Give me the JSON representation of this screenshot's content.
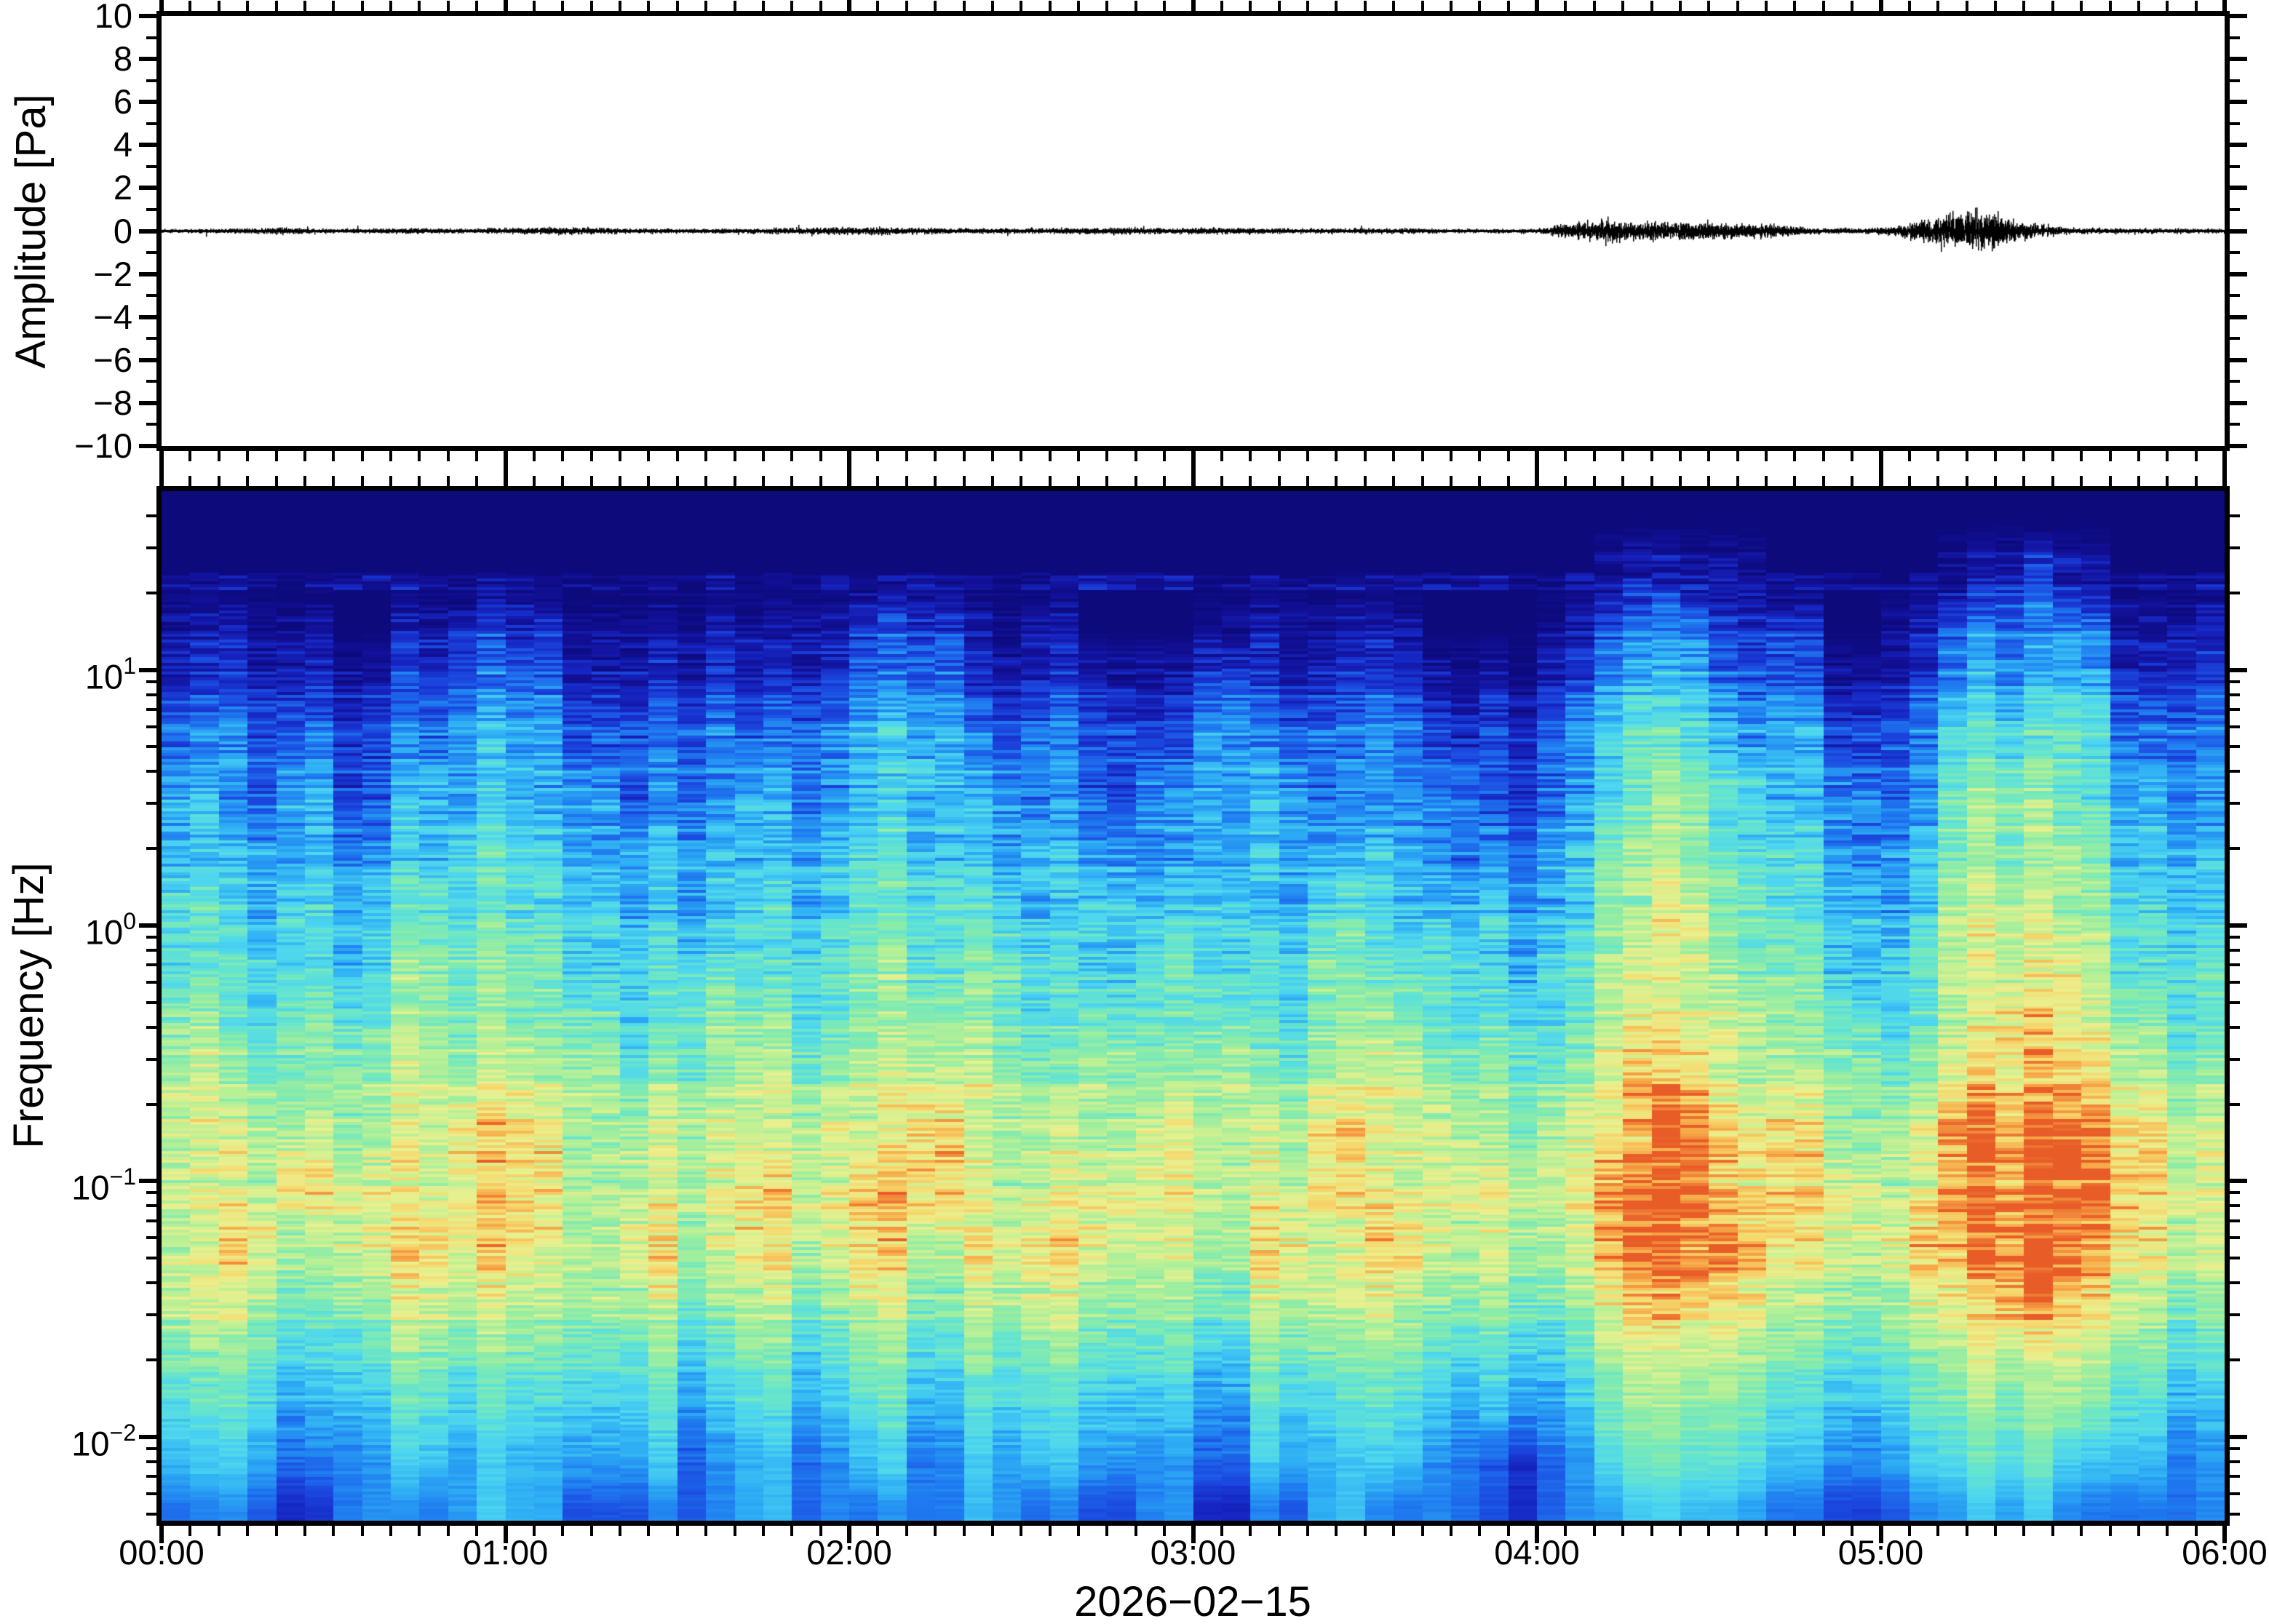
{
  "figure": {
    "background": "#ffffff",
    "frame_color": "#000000",
    "trace_color": "#000000"
  },
  "panels": {
    "waveform": {
      "ylabel": "Amplitude [Pa]"
    },
    "spectrogram": {
      "ylabel": "Frequency [Hz]"
    },
    "xlabel": "2026−02−15"
  },
  "axes": {
    "amplitude_ticks": [
      "10",
      "8",
      "6",
      "4",
      "2",
      "0",
      "−2",
      "−4",
      "−6",
      "−8",
      "−10"
    ],
    "amplitude_major_step": 2,
    "amplitude_minor_step": 1,
    "time_ticks": [
      "00:00",
      "01:00",
      "02:00",
      "03:00",
      "04:00",
      "05:00",
      "06:00"
    ],
    "time_minor_minutes": 5,
    "frequency_ticks": [
      {
        "base": "10",
        "exp": "1"
      },
      {
        "base": "10",
        "exp": "0"
      },
      {
        "base": "10",
        "exp": "−1"
      },
      {
        "base": "10",
        "exp": "−2"
      }
    ]
  },
  "chart_data": [
    {
      "type": "line",
      "name": "infrasound-waveform",
      "ylabel": "Amplitude [Pa]",
      "ylim": [
        -10,
        10
      ],
      "x_hours": [
        0,
        6
      ],
      "date": "2026-02-15",
      "baseline_noise_pa": 0.09,
      "envelope_hour_amp_pa": [
        [
          0.0,
          0.07
        ],
        [
          0.2,
          0.1
        ],
        [
          0.33,
          0.13
        ],
        [
          0.5,
          0.08
        ],
        [
          0.7,
          0.11
        ],
        [
          0.9,
          0.09
        ],
        [
          1.15,
          0.15
        ],
        [
          1.3,
          0.11
        ],
        [
          1.6,
          0.09
        ],
        [
          1.85,
          0.12
        ],
        [
          2.05,
          0.15
        ],
        [
          2.3,
          0.11
        ],
        [
          2.5,
          0.1
        ],
        [
          2.7,
          0.13
        ],
        [
          2.95,
          0.12
        ],
        [
          3.1,
          0.13
        ],
        [
          3.3,
          0.09
        ],
        [
          3.55,
          0.11
        ],
        [
          3.8,
          0.08
        ],
        [
          4.0,
          0.09
        ],
        [
          4.1,
          0.3
        ],
        [
          4.2,
          0.42
        ],
        [
          4.35,
          0.35
        ],
        [
          4.5,
          0.32
        ],
        [
          4.65,
          0.28
        ],
        [
          4.8,
          0.12
        ],
        [
          4.95,
          0.1
        ],
        [
          5.05,
          0.2
        ],
        [
          5.15,
          0.5
        ],
        [
          5.2,
          0.65
        ],
        [
          5.3,
          0.75
        ],
        [
          5.4,
          0.35
        ],
        [
          5.55,
          0.12
        ],
        [
          5.75,
          0.1
        ],
        [
          6.0,
          0.09
        ]
      ],
      "events": [
        {
          "start_hour": 4.08,
          "end_hour": 4.85,
          "peak_pa": 0.45
        },
        {
          "start_hour": 5.05,
          "end_hour": 5.6,
          "peak_pa": 0.85
        }
      ]
    },
    {
      "type": "heatmap",
      "name": "spectrogram",
      "freq_hz_range": [
        0.0047,
        50
      ],
      "time_bin_minutes": 10,
      "column_minutes": 5,
      "intensity_scale": [
        0,
        9
      ],
      "intensity_meaning": "relative spectral power (0 = low, 9 = high)",
      "colormap": [
        [
          0.0,
          "#0d0a7c"
        ],
        [
          0.09,
          "#121199"
        ],
        [
          0.17,
          "#1626c2"
        ],
        [
          0.25,
          "#1b4ae0"
        ],
        [
          0.33,
          "#1f7cf0"
        ],
        [
          0.41,
          "#2eaef4"
        ],
        [
          0.49,
          "#4cd5f0"
        ],
        [
          0.57,
          "#66e5cd"
        ],
        [
          0.65,
          "#8ceca7"
        ],
        [
          0.73,
          "#bbf095"
        ],
        [
          0.81,
          "#e9f08e"
        ],
        [
          0.875,
          "#f5d96e"
        ],
        [
          0.94,
          "#f7a747"
        ],
        [
          1.0,
          "#e85c27"
        ]
      ],
      "artifact_line_hz": 22,
      "bands": [
        {
          "f_top_hz": 50,
          "levels": "000000000000000000000000000000000000"
        },
        {
          "f_top_hz": 28,
          "levels": "000000000000000000000000011100012100"
        },
        {
          "f_top_hz": 18,
          "levels": "111012211111221100111100133220133311"
        },
        {
          "f_top_hz": 11,
          "levels": "222123322222332211322211244331244422"
        },
        {
          "f_top_hz": 6.5,
          "levels": "333234433333443322433322355442355533"
        },
        {
          "f_top_hz": 4.0,
          "levels": "434244443343444323443332356543366543"
        },
        {
          "f_top_hz": 2.4,
          "levels": "444345544444544433444433466553466644"
        },
        {
          "f_top_hz": 1.5,
          "levels": "545455554454555444545444467654477654"
        },
        {
          "f_top_hz": 0.9,
          "levels": "555466655555656545556554577664577755"
        },
        {
          "f_top_hz": 0.55,
          "levels": "656566665665666555656655577765578765"
        },
        {
          "f_top_hz": 0.33,
          "levels": "766677776676777666767766688776688876"
        },
        {
          "f_top_hz": 0.2,
          "levels": "777678877777787767778776789886799987"
        },
        {
          "f_top_hz": 0.12,
          "levels": "778778877787887777778777799887799987"
        },
        {
          "f_top_hz": 0.075,
          "levels": "787788878787878877787877799987899987"
        },
        {
          "f_top_hz": 0.045,
          "levels": "776677777676767766677766688876789876"
        },
        {
          "f_top_hz": 0.028,
          "levels": "665566666565656655566655577765677765"
        },
        {
          "f_top_hz": 0.017,
          "levels": "554455555454545544455544466654566654"
        },
        {
          "f_top_hz": 0.01,
          "levels": "443344444343434433344432355543455443"
        },
        {
          "f_top_hz": 0.006,
          "levels": "332334433343334323234332344432344333"
        }
      ]
    }
  ]
}
